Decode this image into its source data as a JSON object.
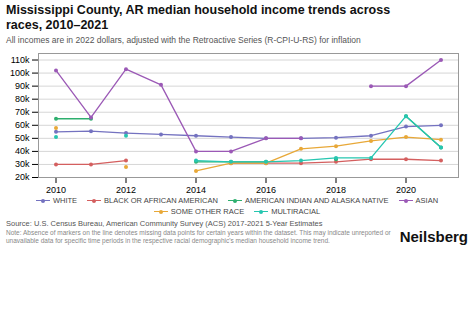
{
  "chart_data": {
    "type": "line",
    "title": "Mississippi County, AR median household income trends across\nraces, 2010–2021",
    "subtitle": "All incomes are in 2022 dollars, adjusted with the Retroactive Series (R-CPI-U-RS) for inflation",
    "source": "Source: U.S. Census Bureau, American Community Survey (ACS) 2017-2021 5-Year Estimates",
    "note": "Note: Absence of markers on the line denotes missing data points for certain years within the dataset. This may indicate unreported or unavailable data for specific time periods in the respective racial demographic's median household income trend.",
    "branding": "Neilsberg",
    "x": [
      2010,
      2011,
      2012,
      2013,
      2014,
      2015,
      2016,
      2017,
      2018,
      2019,
      2020,
      2021
    ],
    "series": [
      {
        "name": "WHITE",
        "color": "#7472c0",
        "values": [
          55000,
          55500,
          54000,
          53000,
          52000,
          51000,
          50000,
          50000,
          50500,
          52000,
          59000,
          60000
        ]
      },
      {
        "name": "BLACK OR AFRICAN AMERICAN",
        "color": "#d45f5f",
        "values": [
          30000,
          30000,
          33000,
          null,
          null,
          31000,
          31000,
          31000,
          32000,
          34000,
          34000,
          33000
        ]
      },
      {
        "name": "AMERICAN INDIAN AND ALASKA NATIVE",
        "color": "#2eaf6e",
        "values": [
          65000,
          65000,
          null,
          null,
          32000,
          32000,
          32000,
          null,
          34000,
          null,
          67000,
          43000
        ]
      },
      {
        "name": "ASIAN",
        "color": "#9b59b6",
        "values": [
          102000,
          66000,
          103000,
          91000,
          40000,
          40000,
          50000,
          50000,
          null,
          90000,
          90000,
          110000
        ]
      },
      {
        "name": "SOME OTHER RACE",
        "color": "#e8a838",
        "values": [
          58000,
          null,
          28000,
          null,
          25000,
          31000,
          31000,
          42000,
          44000,
          48000,
          51000,
          49000
        ]
      },
      {
        "name": "MULTIRACIAL",
        "color": "#26c6b0",
        "values": [
          51000,
          null,
          52000,
          null,
          33000,
          32000,
          32000,
          33000,
          35000,
          35000,
          67000,
          43000
        ]
      }
    ],
    "xlim": [
      2009.5,
      2021.5
    ],
    "xticks": [
      2010,
      2012,
      2014,
      2016,
      2018,
      2020
    ],
    "ylim": [
      20000,
      115000
    ],
    "yticks": [
      {
        "value": 20000,
        "label": "20k"
      },
      {
        "value": 30000,
        "label": "30k"
      },
      {
        "value": 40000,
        "label": "40k"
      },
      {
        "value": 50000,
        "label": "50k"
      },
      {
        "value": 60000,
        "label": "60k"
      },
      {
        "value": 70000,
        "label": "70k"
      },
      {
        "value": 80000,
        "label": "80k"
      },
      {
        "value": 90000,
        "label": "90k"
      },
      {
        "value": 100000,
        "label": "100k"
      },
      {
        "value": 110000,
        "label": "110k"
      }
    ],
    "grid": true,
    "legend": "bottom",
    "marker": "circle"
  }
}
